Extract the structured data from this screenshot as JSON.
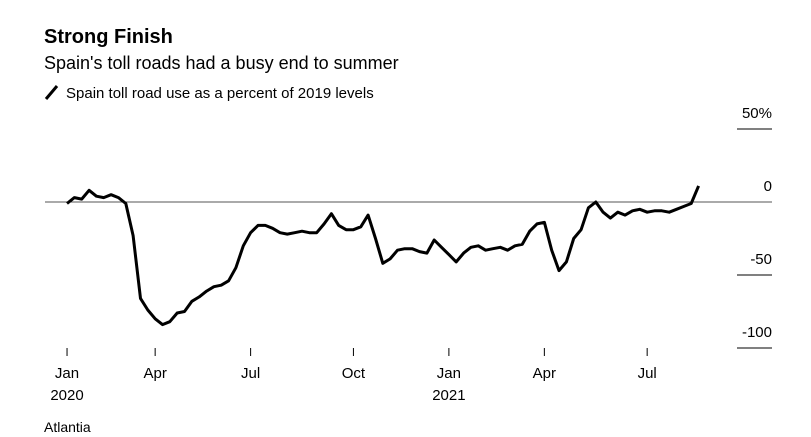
{
  "chart_data": {
    "type": "line",
    "title": "Strong Finish",
    "subtitle": "Spain's toll roads had a busy end to summer",
    "source": "Atlantia",
    "series": [
      {
        "name": "Spain toll road use as a percent of 2019 levels",
        "color": "#000000",
        "values": [
          -1,
          3,
          2,
          8,
          4,
          3,
          5,
          3,
          -1,
          -23,
          -66,
          -74,
          -80,
          -84,
          -82,
          -76,
          -75,
          -68,
          -65,
          -61,
          -58,
          -57,
          -54,
          -45,
          -30,
          -21,
          -16,
          -16,
          -18,
          -21,
          -22,
          -21,
          -20,
          -21,
          -21,
          -15,
          -8,
          -16,
          -19,
          -19,
          -17,
          -9,
          -25,
          -42,
          -39,
          -33,
          -32,
          -32,
          -34,
          -35,
          -26,
          -31,
          -36,
          -41,
          -35,
          -31,
          -30,
          -33,
          -32,
          -31,
          -33,
          -30,
          -29,
          -20,
          -15,
          -14,
          -33,
          -47,
          -41,
          -25,
          -19,
          -4,
          0,
          -7,
          -11,
          -7,
          -9,
          -6,
          -5,
          -7,
          -6,
          -6,
          -7,
          -5,
          -3,
          -1,
          11
        ]
      }
    ],
    "xlim": [
      -3,
      96
    ],
    "xticks": [
      {
        "value": 0,
        "label": "Jan",
        "sublabel": "2020"
      },
      {
        "value": 12,
        "label": "Apr"
      },
      {
        "value": 25,
        "label": "Jul"
      },
      {
        "value": 39,
        "label": "Oct"
      },
      {
        "value": 52,
        "label": "Jan",
        "sublabel": "2021"
      },
      {
        "value": 65,
        "label": "Apr"
      },
      {
        "value": 79,
        "label": "Jul"
      }
    ],
    "ylim": [
      -100,
      50
    ],
    "yticks": [
      -100,
      -50,
      0,
      {
        "value": 50,
        "label": "50%"
      }
    ]
  }
}
